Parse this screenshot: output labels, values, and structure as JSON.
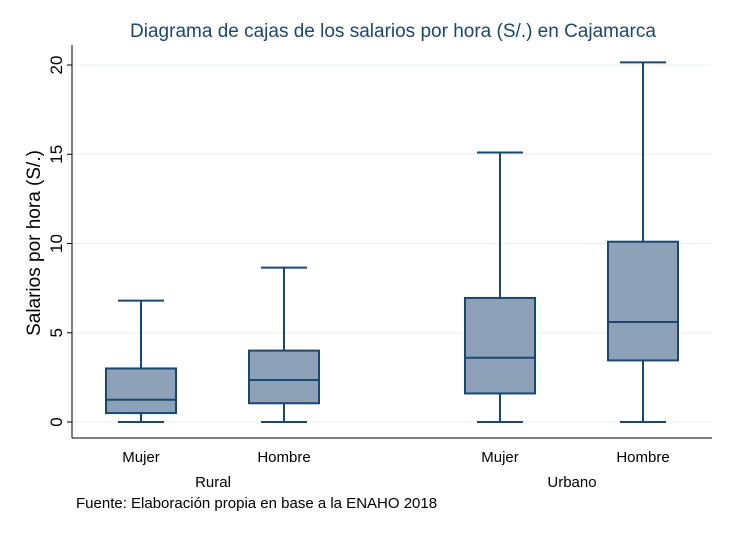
{
  "chart_data": {
    "type": "box",
    "title": "Diagrama de cajas de los salarios por hora (S/.) en Cajamarca",
    "ylabel": "Salarios por hora (S/.)",
    "ylim": [
      0,
      20
    ],
    "yticks": [
      "0",
      "5",
      "10",
      "15",
      "20"
    ],
    "grid": true,
    "groups": [
      {
        "label": "Rural",
        "boxes": [
          {
            "category": "Mujer",
            "min": 0,
            "q1": 0.5,
            "median": 1.25,
            "q3": 3.0,
            "max": 6.8
          },
          {
            "category": "Hombre",
            "min": 0,
            "q1": 1.05,
            "median": 2.35,
            "q3": 4.0,
            "max": 8.65
          }
        ]
      },
      {
        "label": "Urbano",
        "boxes": [
          {
            "category": "Mujer",
            "min": 0,
            "q1": 1.6,
            "median": 3.6,
            "q3": 6.95,
            "max": 15.1
          },
          {
            "category": "Hombre",
            "min": 0,
            "q1": 3.45,
            "median": 5.6,
            "q3": 10.1,
            "max": 20.15
          }
        ]
      }
    ],
    "note": "Fuente: Elaboración propia en base a la ENAHO 2018",
    "colors": {
      "box_fill": "#8da2b8",
      "line": "#1a476f",
      "title": "#1a476f"
    }
  }
}
